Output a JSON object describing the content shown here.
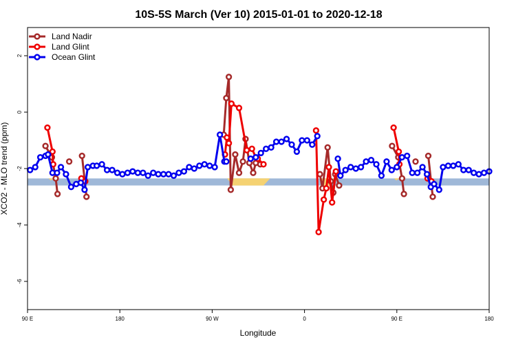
{
  "chart_data": {
    "type": "line",
    "title": "10S-5S March (Ver 10)   2015-01-01 to 2020-12-18",
    "xlabel": "Longitude",
    "ylabel": "XCO2 - MLO trend (ppm)",
    "xlim": [
      90,
      450
    ],
    "ylim": [
      -7,
      3
    ],
    "x_ticks": [
      {
        "value": 90,
        "label": "90 E"
      },
      {
        "value": 162,
        "label": "180"
      },
      {
        "value": 234,
        "label": "90 W"
      },
      {
        "value": 306,
        "label": "0"
      },
      {
        "value": 378,
        "label": "90 E"
      },
      {
        "value": 450,
        "label": "180"
      }
    ],
    "y_ticks": [
      {
        "value": 2,
        "label": "2"
      },
      {
        "value": 0,
        "label": "0"
      },
      {
        "value": -2,
        "label": "-2"
      },
      {
        "value": -4,
        "label": "-4"
      },
      {
        "value": -6,
        "label": "-6"
      }
    ],
    "legend_position": "top-left",
    "band": {
      "y_top": -2.35,
      "y_bottom": -2.6,
      "color": "#9fb8d8"
    },
    "land_fills": {
      "color": "#f5d272",
      "segments": [
        {
          "x": [
            104.4,
            106.3,
            108.2,
            110.1,
            112.0,
            113.9,
            115.8
          ],
          "y": [
            -2.35,
            -2.35,
            -2.42,
            -2.37,
            -2.41,
            -2.35,
            -2.35
          ]
        },
        {
          "x": [
            130.4,
            131.9,
            133.4,
            134.9,
            136.4
          ],
          "y": [
            -2.35,
            -2.36,
            -2.4,
            -2.37,
            -2.35
          ]
        },
        {
          "x": [
            245.6,
            250.0,
            255.0,
            262.0,
            268.0,
            274.0,
            279.2
          ],
          "y": [
            -2.35,
            -2.6,
            -2.6,
            -2.6,
            -2.6,
            -2.6,
            -2.35
          ]
        },
        {
          "x": [
            318.0,
            320.0,
            323.0,
            326.0,
            329.0
          ],
          "y": [
            -2.35,
            -2.6,
            -2.6,
            -2.6,
            -2.35
          ]
        },
        {
          "x": [
            373.8,
            375.7,
            377.6,
            379.5,
            381.4,
            383.3,
            385.2
          ],
          "y": [
            -2.35,
            -2.35,
            -2.42,
            -2.37,
            -2.41,
            -2.35,
            -2.35
          ]
        },
        {
          "x": [
            400.0,
            401.5,
            403.0,
            404.5,
            406.0
          ],
          "y": [
            -2.35,
            -2.36,
            -2.4,
            -2.37,
            -2.35
          ]
        }
      ]
    },
    "series": [
      {
        "name": "Land Nadir",
        "color": "#a52a2a",
        "segments": [
          {
            "x": [
              104,
              109,
              112,
              113.4
            ],
            "y": [
              -1.2,
              -1.6,
              -2.35,
              -2.9
            ]
          },
          {
            "x": [
              122.5
            ],
            "y": [
              -1.75
            ]
          },
          {
            "x": [
              132.5,
              136
            ],
            "y": [
              -1.55,
              -3.0
            ]
          },
          {
            "x": [
              243,
              245,
              247,
              248.5,
              252,
              255,
              258,
              260,
              263,
              266,
              268,
              271.5
            ],
            "y": [
              -0.8,
              0.5,
              1.25,
              -2.75,
              -1.5,
              -2.15,
              -1.75,
              -0.95,
              -1.8,
              -2.15,
              -1.8,
              -1.85
            ]
          },
          {
            "x": [
              318,
              320,
              324,
              326.5,
              328.5,
              330,
              333
            ],
            "y": [
              -2.2,
              -2.7,
              -1.25,
              -2.45,
              -2.85,
              -2.2,
              -2.6
            ]
          },
          {
            "x": [
              374.3,
              379.1,
              382.1,
              383.5
            ],
            "y": [
              -1.2,
              -1.6,
              -2.35,
              -2.9
            ]
          },
          {
            "x": [
              392.6
            ],
            "y": [
              -1.75
            ]
          },
          {
            "x": [
              402.5,
              406
            ],
            "y": [
              -1.55,
              -3.0
            ]
          }
        ]
      },
      {
        "name": "Land Glint",
        "color": "#ee0000",
        "segments": [
          {
            "x": [
              105.5,
              109.5,
              110
            ],
            "y": [
              -0.55,
              -1.4,
              -1.85
            ]
          },
          {
            "x": [
              132,
              135
            ],
            "y": [
              -2.35,
              -2.45
            ]
          },
          {
            "x": [
              244,
              245.5,
              247,
              249,
              255,
              261,
              265,
              268,
              269.5,
              274
            ],
            "y": [
              -1.5,
              -0.9,
              -1.1,
              0.3,
              0.15,
              -1.35,
              -1.3,
              -1.6,
              -1.65,
              -1.85
            ]
          },
          {
            "x": [
              315,
              317,
              321,
              323,
              325,
              327.5,
              330.5
            ],
            "y": [
              -0.65,
              -4.25,
              -3.1,
              -2.7,
              -1.95,
              -3.2,
              -2.1
            ]
          },
          {
            "x": [
              375.5,
              379.5,
              380
            ],
            "y": [
              -0.55,
              -1.4,
              -1.85
            ]
          },
          {
            "x": [
              402,
              405
            ],
            "y": [
              -2.35,
              -2.45
            ]
          }
        ]
      },
      {
        "name": "Ocean Glint",
        "color": "#0000ee",
        "segments": [
          {
            "x": [
              92,
              96,
              100,
              104,
              106,
              109.5,
              113,
              116,
              120,
              124,
              128,
              131.5,
              134.5,
              137,
              141,
              144,
              148,
              152,
              156,
              160,
              164,
              168,
              172,
              176,
              180,
              184,
              188,
              192,
              196,
              200,
              204,
              208,
              212,
              216,
              220,
              224,
              228,
              232,
              236,
              240,
              243.5,
              245
            ],
            "y": [
              -2.05,
              -1.95,
              -1.6,
              -1.55,
              -1.5,
              -2.15,
              -2.15,
              -1.95,
              -2.2,
              -2.65,
              -2.55,
              -2.5,
              -2.75,
              -1.95,
              -1.9,
              -1.9,
              -1.85,
              -2.05,
              -2.05,
              -2.15,
              -2.2,
              -2.15,
              -2.1,
              -2.15,
              -2.15,
              -2.25,
              -2.15,
              -2.2,
              -2.2,
              -2.2,
              -2.25,
              -2.15,
              -2.1,
              -1.95,
              -2.0,
              -1.9,
              -1.85,
              -1.9,
              -1.95,
              -0.8,
              -1.75,
              -1.75
            ]
          },
          {
            "x": [
              264,
              268,
              272,
              276,
              280,
              284,
              288,
              292,
              296,
              300,
              304,
              308,
              312,
              316
            ],
            "y": [
              -1.65,
              -1.6,
              -1.45,
              -1.3,
              -1.25,
              -1.05,
              -1.05,
              -0.95,
              -1.15,
              -1.4,
              -1.0,
              -1.0,
              -1.15,
              -0.85
            ]
          },
          {
            "x": [
              332,
              334,
              338,
              342,
              346,
              350,
              354,
              358,
              362,
              366,
              370,
              374,
              378,
              382,
              386,
              390,
              394,
              398,
              401.5,
              404.5,
              407,
              411,
              414,
              418,
              422,
              426,
              430,
              434,
              438,
              442,
              446,
              450
            ],
            "y": [
              -1.65,
              -2.25,
              -2.05,
              -1.95,
              -2.0,
              -1.95,
              -1.75,
              -1.7,
              -1.85,
              -2.25,
              -1.75,
              -2.05,
              -1.95,
              -1.6,
              -1.55,
              -2.15,
              -2.15,
              -1.95,
              -2.2,
              -2.65,
              -2.55,
              -2.75,
              -1.95,
              -1.9,
              -1.9,
              -1.85,
              -2.05,
              -2.05,
              -2.15,
              -2.2,
              -2.15,
              -2.1
            ]
          }
        ]
      }
    ]
  }
}
